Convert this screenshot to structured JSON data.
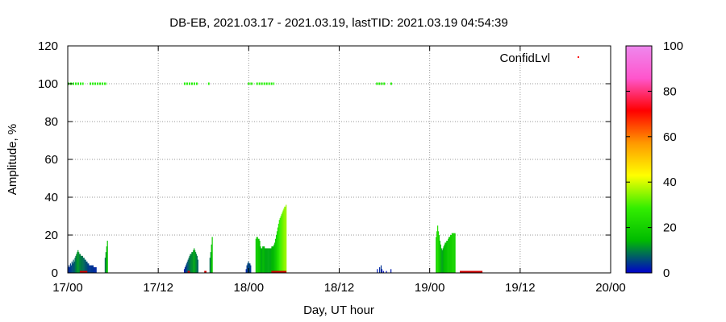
{
  "chart_data": {
    "type": "bar",
    "title": "DB-EB, 2021.03.17 - 2021.03.19, lastTID: 2021.03.19 04:54:39",
    "xlabel": "Day, UT hour",
    "ylabel": "Amplitude, %",
    "xlim": [
      0,
      72
    ],
    "ylim": [
      0,
      120
    ],
    "x_unit": "hours since 17/00",
    "x_ticks": [
      {
        "value": 0,
        "label": "17/00"
      },
      {
        "value": 12,
        "label": "17/12"
      },
      {
        "value": 24,
        "label": "18/00"
      },
      {
        "value": 36,
        "label": "18/12"
      },
      {
        "value": 48,
        "label": "19/00"
      },
      {
        "value": 60,
        "label": "19/12"
      },
      {
        "value": 72,
        "label": "20/00"
      }
    ],
    "y_ticks": [
      "0",
      "20",
      "40",
      "60",
      "80",
      "100",
      "120"
    ],
    "grid": true,
    "legend": {
      "label": "ConfidLvl",
      "position": "top-right"
    },
    "colorbar": {
      "min": 0,
      "max": 100,
      "ticks": [
        "0",
        "20",
        "40",
        "60",
        "80",
        "100"
      ],
      "palette": [
        "#0000cc",
        "#00bb00",
        "#33ee00",
        "#ffff00",
        "#ff9900",
        "#ff0000",
        "#ff55cc",
        "#ee88ee"
      ]
    },
    "series": [
      {
        "name": "Amplitude",
        "points": [
          [
            0.0,
            3
          ],
          [
            0.1,
            4
          ],
          [
            0.2,
            3
          ],
          [
            0.3,
            5
          ],
          [
            0.4,
            4
          ],
          [
            0.5,
            6
          ],
          [
            0.6,
            5
          ],
          [
            0.7,
            7
          ],
          [
            0.8,
            6
          ],
          [
            0.9,
            8
          ],
          [
            1.0,
            9
          ],
          [
            1.1,
            10
          ],
          [
            1.2,
            11
          ],
          [
            1.3,
            12
          ],
          [
            1.4,
            11
          ],
          [
            1.5,
            10
          ],
          [
            1.6,
            10
          ],
          [
            1.7,
            9
          ],
          [
            1.8,
            9
          ],
          [
            1.9,
            9
          ],
          [
            2.0,
            8
          ],
          [
            2.1,
            8
          ],
          [
            2.2,
            7
          ],
          [
            2.3,
            7
          ],
          [
            2.4,
            6
          ],
          [
            2.5,
            6
          ],
          [
            2.6,
            5
          ],
          [
            2.7,
            5
          ],
          [
            2.8,
            4
          ],
          [
            2.9,
            4
          ],
          [
            3.0,
            4
          ],
          [
            3.1,
            4
          ],
          [
            3.2,
            4
          ],
          [
            3.3,
            4
          ],
          [
            3.4,
            3
          ],
          [
            3.5,
            3
          ],
          [
            3.6,
            3
          ],
          [
            3.7,
            3
          ],
          [
            4.9,
            8
          ],
          [
            5.0,
            11
          ],
          [
            5.1,
            14
          ],
          [
            5.2,
            17
          ],
          [
            15.4,
            2
          ],
          [
            15.5,
            3
          ],
          [
            15.6,
            4
          ],
          [
            15.7,
            5
          ],
          [
            15.8,
            6
          ],
          [
            15.9,
            7
          ],
          [
            16.0,
            8
          ],
          [
            16.1,
            9
          ],
          [
            16.2,
            10
          ],
          [
            16.3,
            10
          ],
          [
            16.4,
            11
          ],
          [
            16.5,
            11
          ],
          [
            16.6,
            12
          ],
          [
            16.7,
            13
          ],
          [
            16.8,
            12
          ],
          [
            16.9,
            11
          ],
          [
            17.0,
            10
          ],
          [
            17.1,
            9
          ],
          [
            17.2,
            7
          ],
          [
            18.8,
            8
          ],
          [
            18.9,
            11
          ],
          [
            19.0,
            15
          ],
          [
            19.1,
            19
          ],
          [
            23.6,
            2
          ],
          [
            23.7,
            4
          ],
          [
            23.8,
            5
          ],
          [
            23.9,
            6
          ],
          [
            24.0,
            5
          ],
          [
            24.1,
            5
          ],
          [
            24.2,
            4
          ],
          [
            24.9,
            18
          ],
          [
            25.0,
            19
          ],
          [
            25.1,
            19
          ],
          [
            25.2,
            18
          ],
          [
            25.3,
            18
          ],
          [
            25.4,
            17
          ],
          [
            25.5,
            14
          ],
          [
            25.6,
            13
          ],
          [
            25.7,
            13
          ],
          [
            25.8,
            14
          ],
          [
            25.9,
            14
          ],
          [
            26.0,
            14
          ],
          [
            26.1,
            13
          ],
          [
            26.2,
            13
          ],
          [
            26.3,
            13
          ],
          [
            26.4,
            13
          ],
          [
            26.5,
            13
          ],
          [
            26.6,
            13
          ],
          [
            26.7,
            13
          ],
          [
            26.8,
            13
          ],
          [
            26.9,
            13
          ],
          [
            27.0,
            14
          ],
          [
            27.1,
            14
          ],
          [
            27.2,
            14
          ],
          [
            27.3,
            15
          ],
          [
            27.4,
            16
          ],
          [
            27.5,
            18
          ],
          [
            27.6,
            20
          ],
          [
            27.7,
            22
          ],
          [
            27.8,
            24
          ],
          [
            27.9,
            26
          ],
          [
            28.0,
            28
          ],
          [
            28.1,
            29
          ],
          [
            28.2,
            30
          ],
          [
            28.3,
            31
          ],
          [
            28.4,
            32
          ],
          [
            28.5,
            33
          ],
          [
            28.6,
            34
          ],
          [
            28.7,
            35
          ],
          [
            28.8,
            35
          ],
          [
            28.9,
            36
          ],
          [
            41.0,
            2
          ],
          [
            41.3,
            3
          ],
          [
            41.5,
            4
          ],
          [
            41.6,
            2
          ],
          [
            41.8,
            1
          ],
          [
            42.2,
            1
          ],
          [
            42.8,
            2
          ],
          [
            48.8,
            19
          ],
          [
            48.9,
            22
          ],
          [
            49.0,
            25
          ],
          [
            49.1,
            22
          ],
          [
            49.2,
            20
          ],
          [
            49.3,
            17
          ],
          [
            49.4,
            15
          ],
          [
            49.5,
            13
          ],
          [
            49.6,
            12
          ],
          [
            49.7,
            13
          ],
          [
            49.8,
            14
          ],
          [
            49.9,
            15
          ],
          [
            50.0,
            16
          ],
          [
            50.1,
            16
          ],
          [
            50.2,
            17
          ],
          [
            50.3,
            17
          ],
          [
            50.4,
            18
          ],
          [
            50.5,
            19
          ],
          [
            50.6,
            19
          ],
          [
            50.7,
            20
          ],
          [
            50.8,
            20
          ],
          [
            50.9,
            21
          ],
          [
            51.0,
            21
          ],
          [
            51.1,
            21
          ],
          [
            51.2,
            21
          ],
          [
            51.3,
            21
          ]
        ]
      },
      {
        "name": "ConfidLvl",
        "segments": [
          [
            0.0,
            2.1
          ],
          [
            2.9,
            5.2
          ],
          [
            15.4,
            17.3
          ],
          [
            18.6,
            18.8
          ],
          [
            23.9,
            24.6
          ],
          [
            25.0,
            27.4
          ],
          [
            40.9,
            42.1
          ],
          [
            42.8,
            43.0
          ]
        ]
      }
    ]
  }
}
